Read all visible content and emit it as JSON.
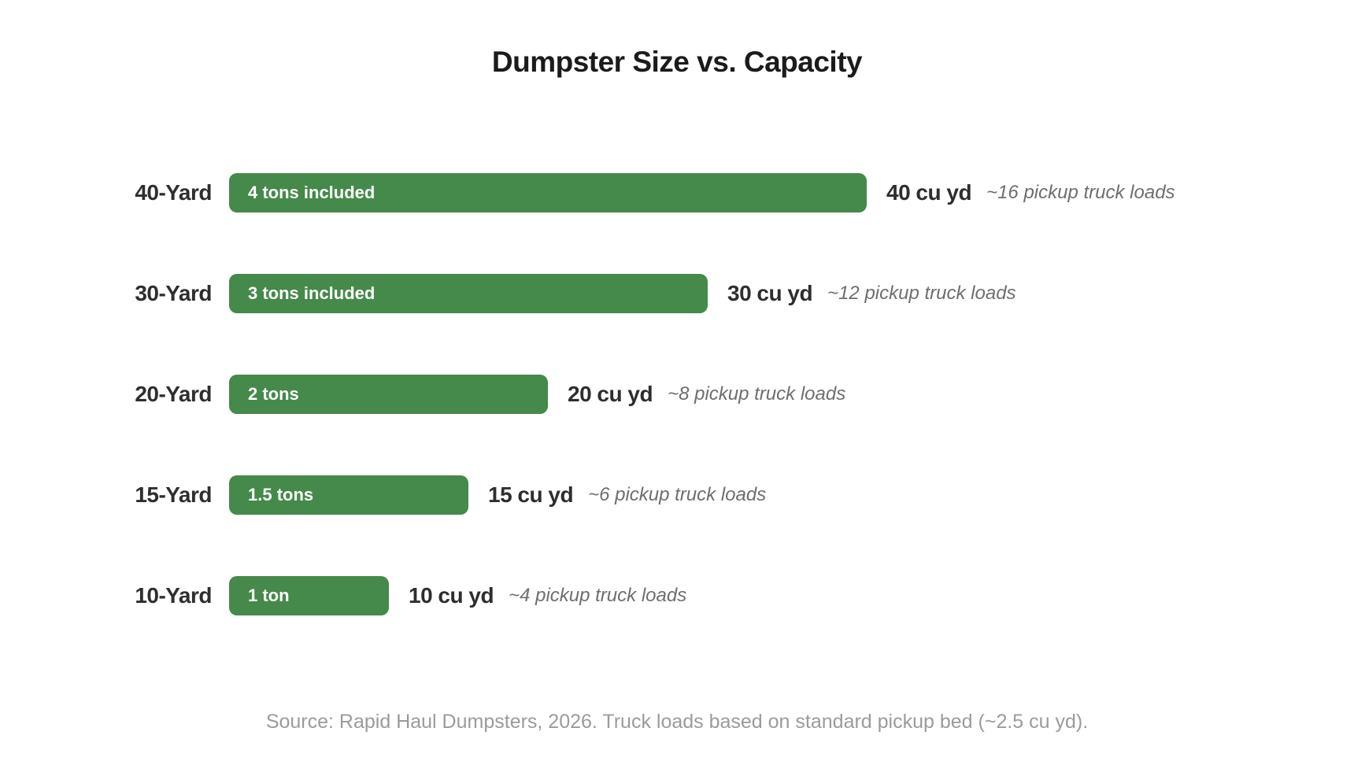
{
  "chart_data": {
    "type": "bar",
    "orientation": "horizontal",
    "title": "Dumpster Size vs. Capacity",
    "xlabel": "",
    "ylabel": "",
    "unit": "cu yd",
    "xlim": [
      0,
      40
    ],
    "grid": false,
    "legend": "none",
    "bar_color": "#45894B",
    "categories": [
      "40-Yard",
      "30-Yard",
      "20-Yard",
      "15-Yard",
      "10-Yard"
    ],
    "values": [
      40,
      30,
      20,
      15,
      10
    ],
    "rows": [
      {
        "label": "40-Yard",
        "value": 40,
        "bar_label": "4 tons included",
        "value_label": "40 cu yd",
        "loads_label": "~16 pickup truck loads"
      },
      {
        "label": "30-Yard",
        "value": 30,
        "bar_label": "3 tons included",
        "value_label": "30 cu yd",
        "loads_label": "~12 pickup truck loads"
      },
      {
        "label": "20-Yard",
        "value": 20,
        "bar_label": "2 tons",
        "value_label": "20 cu yd",
        "loads_label": "~8 pickup truck loads"
      },
      {
        "label": "15-Yard",
        "value": 15,
        "bar_label": "1.5 tons",
        "value_label": "15 cu yd",
        "loads_label": "~6 pickup truck loads"
      },
      {
        "label": "10-Yard",
        "value": 10,
        "bar_label": "1 ton",
        "value_label": "10 cu yd",
        "loads_label": "~4 pickup truck loads"
      }
    ],
    "source_note": "Source: Rapid Haul Dumpsters, 2026. Truck loads based on standard pickup bed (~2.5 cu yd)."
  }
}
